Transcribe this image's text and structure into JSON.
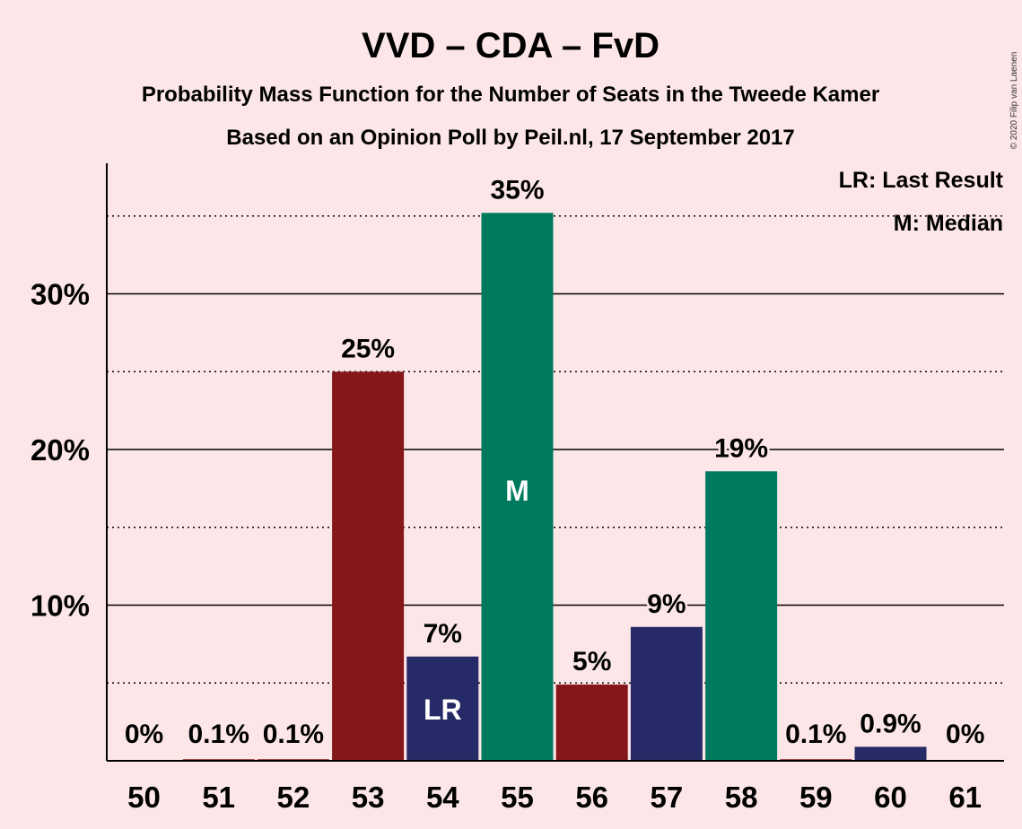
{
  "chart_data": {
    "type": "bar",
    "title": "VVD – CDA – FvD",
    "subtitle": "Probability Mass Function for the Number of Seats in the Tweede Kamer",
    "subtitle2": "Based on an Opinion Poll by Peil.nl, 17 September 2017",
    "copyright": "© 2020 Filip van Laenen",
    "categories": [
      "50",
      "51",
      "52",
      "53",
      "54",
      "55",
      "56",
      "57",
      "58",
      "59",
      "60",
      "61"
    ],
    "values": [
      0,
      0.1,
      0.1,
      25,
      6.7,
      35.2,
      4.9,
      8.6,
      18.6,
      0.1,
      0.9,
      0
    ],
    "value_labels": [
      "0%",
      "0.1%",
      "0.1%",
      "25%",
      "7%",
      "35%",
      "5%",
      "9%",
      "19%",
      "0.1%",
      "0.9%",
      "0%"
    ],
    "bar_colors": [
      "#85171a",
      "#85171a",
      "#85171a",
      "#85171a",
      "#262a66",
      "#007a5e",
      "#85171a",
      "#262a66",
      "#007a5e",
      "#85171a",
      "#262a66",
      "#007a5e"
    ],
    "markers": [
      {
        "seat": "54",
        "label": "LR"
      },
      {
        "seat": "55",
        "label": "M"
      }
    ],
    "yticks": [
      10,
      20,
      30
    ],
    "ytick_labels": [
      "10%",
      "20%",
      "30%"
    ],
    "ylim": [
      0,
      38
    ],
    "grid": "solid lines at 10% intervals, dotted lines at 5% offsets",
    "legend": {
      "placement": "top-right",
      "items": [
        "LR: Last Result",
        "M: Median"
      ]
    }
  }
}
